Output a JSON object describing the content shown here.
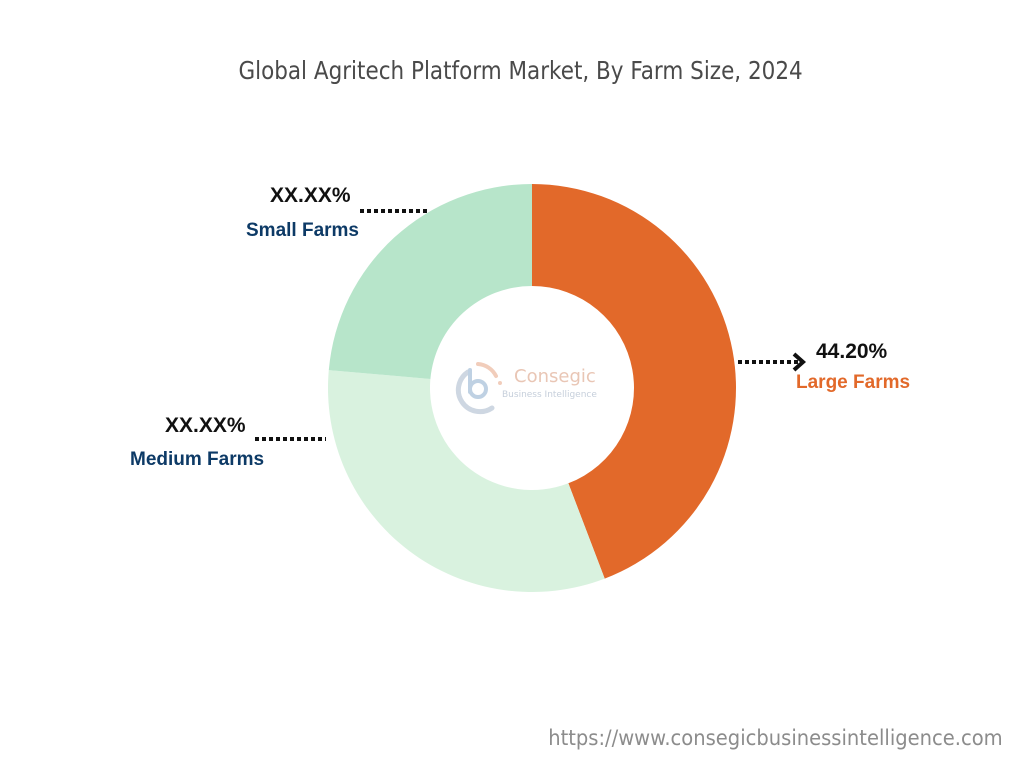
{
  "title": "Global Agritech Platform Market, By Farm Size, 2024",
  "footer_url": "https://www.consegicbusinessintelligence.com",
  "logo": {
    "name": "Consegic",
    "tagline": "Business Intelligence",
    "icon": "consegic-logo-icon"
  },
  "labels": {
    "large": {
      "value": "44.20%",
      "name": "Large Farms",
      "color": "#e2692a"
    },
    "small": {
      "value": "XX.XX%",
      "name": "Small Farms",
      "color": "#0d3a66"
    },
    "medium": {
      "value": "XX.XX%",
      "name": "Medium Farms",
      "color": "#0d3a66"
    }
  },
  "chart_data": {
    "type": "pie",
    "variant": "donut",
    "title": "Global Agritech Platform Market, By Farm Size, 2024",
    "categories": [
      "Large Farms",
      "Medium Farms",
      "Small Farms"
    ],
    "values": [
      44.2,
      32.2,
      23.6
    ],
    "value_labels": [
      "44.20%",
      "XX.XX%",
      "XX.XX%"
    ],
    "colors": [
      "#e2692a",
      "#d9f2df",
      "#b7e5ca"
    ],
    "start_angle_deg": 0,
    "direction": "clockwise",
    "legend": "none (callout labels)"
  }
}
